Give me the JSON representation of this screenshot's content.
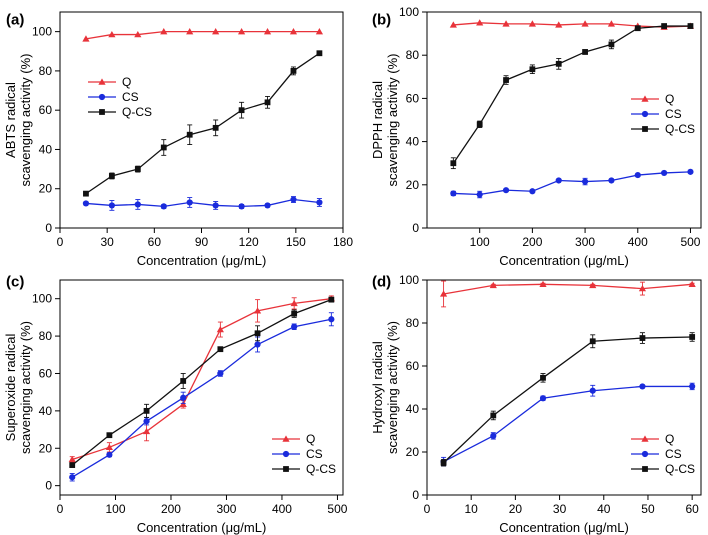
{
  "colors": {
    "Q": "#e8333a",
    "CS": "#1a2bdc",
    "Q-CS": "#111111",
    "axis": "#000000"
  },
  "chart_data": [
    {
      "panel": "(a)",
      "type": "line",
      "xlabel": "Concentration (μg/mL)",
      "ylabel": [
        "ABTS radical",
        "scavenging activity (%)"
      ],
      "xlim": [
        0,
        180
      ],
      "ylim": [
        0,
        110
      ],
      "xticks": [
        0,
        30,
        60,
        90,
        120,
        150,
        180
      ],
      "yticks": [
        0,
        20,
        40,
        60,
        80,
        100
      ],
      "legend": "center-left",
      "x": [
        16.5,
        33,
        49.5,
        66,
        82.5,
        99,
        115.5,
        132,
        148.5,
        165
      ],
      "series": [
        {
          "name": "Q",
          "marker": "triangle",
          "values": [
            96.3,
            98.5,
            98.5,
            100,
            100,
            100,
            100,
            100,
            100,
            100
          ],
          "errors": [
            0,
            0,
            0,
            0,
            0,
            0,
            0,
            0,
            0,
            0
          ]
        },
        {
          "name": "CS",
          "marker": "circle",
          "values": [
            12.5,
            11.5,
            12,
            11,
            13,
            11.5,
            11,
            11.5,
            14.5,
            13
          ],
          "errors": [
            0.8,
            2.5,
            2.5,
            1,
            2.5,
            2,
            1,
            0.8,
            1.5,
            2
          ]
        },
        {
          "name": "Q-CS",
          "marker": "square",
          "values": [
            17.5,
            26.5,
            30,
            41,
            47.5,
            51,
            60,
            64,
            80,
            89
          ],
          "errors": [
            0.8,
            1.5,
            1.5,
            4,
            5,
            4,
            4,
            3,
            2,
            0.8
          ]
        }
      ]
    },
    {
      "panel": "(b)",
      "type": "line",
      "xlabel": "Concentration (μg/mL)",
      "ylabel": [
        "DPPH radical",
        "scavenging activity (%)"
      ],
      "xlim": [
        0,
        520
      ],
      "ylim": [
        0,
        100
      ],
      "xticks": [
        100,
        200,
        300,
        400,
        500
      ],
      "yticks": [
        0,
        20,
        40,
        60,
        80,
        100
      ],
      "legend": "right",
      "x": [
        50,
        100,
        150,
        200,
        250,
        300,
        350,
        400,
        450,
        500
      ],
      "series": [
        {
          "name": "Q",
          "marker": "triangle",
          "values": [
            94,
            95,
            94.5,
            94.5,
            94,
            94.5,
            94.5,
            93.5,
            93,
            93.5
          ],
          "errors": [
            0,
            0,
            0,
            0,
            0,
            0,
            0,
            0,
            0,
            0
          ]
        },
        {
          "name": "CS",
          "marker": "circle",
          "values": [
            16,
            15.5,
            17.5,
            17,
            22,
            21.5,
            22,
            24.5,
            25.5,
            26
          ],
          "errors": [
            1,
            1.5,
            0.5,
            0.5,
            0.5,
            1.5,
            0.5,
            0.5,
            0.5,
            0.5
          ]
        },
        {
          "name": "Q-CS",
          "marker": "square",
          "values": [
            30,
            48,
            68.5,
            73.5,
            76,
            81.5,
            85,
            92.5,
            93.5,
            93.5
          ],
          "errors": [
            2.5,
            1.5,
            2,
            2,
            2.5,
            1,
            2,
            1,
            0.5,
            0.5
          ]
        }
      ]
    },
    {
      "panel": "(c)",
      "type": "line",
      "xlabel": "Concentration (μg/mL)",
      "ylabel": [
        "Superoxide radical",
        "scavenging activity (%)"
      ],
      "xlim": [
        0,
        510
      ],
      "ylim": [
        -5,
        110
      ],
      "xticks": [
        0,
        100,
        200,
        300,
        400,
        500
      ],
      "yticks": [
        0,
        20,
        40,
        60,
        80,
        100
      ],
      "legend": "bottom-right",
      "x": [
        22,
        89,
        156,
        222,
        289,
        356,
        422,
        489
      ],
      "series": [
        {
          "name": "Q",
          "marker": "triangle",
          "values": [
            14,
            20.5,
            29,
            43.5,
            83.5,
            93.5,
            97.5,
            100
          ],
          "errors": [
            1.5,
            2.5,
            5,
            2,
            4,
            6,
            3,
            1.5
          ]
        },
        {
          "name": "CS",
          "marker": "circle",
          "values": [
            4.5,
            16.5,
            34.5,
            47,
            60,
            75.5,
            85,
            89
          ],
          "errors": [
            2,
            1,
            2,
            3,
            1.5,
            4,
            1.5,
            3.5
          ]
        },
        {
          "name": "Q-CS",
          "marker": "square",
          "values": [
            11,
            27,
            40,
            56,
            73,
            81.5,
            92,
            99.5
          ],
          "errors": [
            1,
            1,
            3.5,
            4,
            1,
            4,
            2,
            0.5
          ]
        }
      ]
    },
    {
      "panel": "(d)",
      "type": "line",
      "xlabel": "Concentration (μg/mL)",
      "ylabel": [
        "Hydroxyl radical",
        "scavenging activity (%)"
      ],
      "xlim": [
        0,
        62
      ],
      "ylim": [
        0,
        100
      ],
      "xticks": [
        0,
        10,
        20,
        30,
        40,
        50,
        60
      ],
      "yticks": [
        0,
        20,
        40,
        60,
        80,
        100
      ],
      "legend": "bottom-right",
      "x": [
        3.75,
        15,
        26.25,
        37.5,
        48.75,
        60
      ],
      "series": [
        {
          "name": "Q",
          "marker": "triangle",
          "values": [
            93.5,
            97.5,
            98,
            97.5,
            96,
            98
          ],
          "errors": [
            6,
            0.5,
            0.5,
            0.5,
            3,
            0.5
          ]
        },
        {
          "name": "CS",
          "marker": "circle",
          "values": [
            15.5,
            27.5,
            45,
            48.5,
            50.5,
            50.5
          ],
          "errors": [
            2,
            1.5,
            1,
            2.5,
            0.5,
            1.5
          ]
        },
        {
          "name": "Q-CS",
          "marker": "square",
          "values": [
            15,
            37,
            54.5,
            71.5,
            73,
            73.5
          ],
          "errors": [
            1.5,
            2,
            2,
            3,
            2.5,
            2
          ]
        }
      ]
    }
  ]
}
